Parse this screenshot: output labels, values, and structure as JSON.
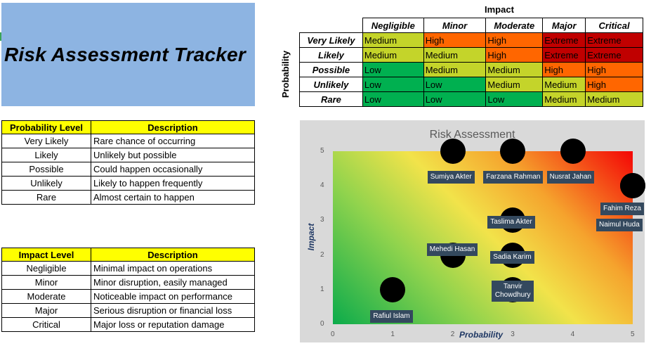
{
  "title": "Risk Assessment Tracker",
  "probability_table": {
    "headers": [
      "Probability Level",
      "Description"
    ],
    "rows": [
      [
        "Very Likely",
        "Rare chance of occurring"
      ],
      [
        "Likely",
        "Unlikely but possible"
      ],
      [
        "Possible",
        "Could happen occasionally"
      ],
      [
        "Unlikely",
        "Likely to happen frequently"
      ],
      [
        "Rare",
        "Almost certain to happen"
      ]
    ]
  },
  "impact_table": {
    "headers": [
      "Impact Level",
      "Description"
    ],
    "rows": [
      [
        "Negligible",
        "Minimal impact on operations"
      ],
      [
        "Minor",
        "Minor disruption, easily managed"
      ],
      [
        "Moderate",
        "Noticeable impact on performance"
      ],
      [
        "Major",
        "Serious disruption or financial loss"
      ],
      [
        "Critical",
        "Major loss or reputation damage"
      ]
    ]
  },
  "matrix": {
    "impact_label": "Impact",
    "probability_label": "Probability",
    "columns": [
      "Negligible",
      "Minor",
      "Moderate",
      "Major",
      "Critical"
    ],
    "rows": [
      {
        "label": "Very Likely",
        "cells": [
          "Medium",
          "High",
          "High",
          "Extreme",
          "Extreme"
        ]
      },
      {
        "label": "Likely",
        "cells": [
          "Medium",
          "Medium",
          "High",
          "Extreme",
          "Extreme"
        ]
      },
      {
        "label": "Possible",
        "cells": [
          "Low",
          "Medium",
          "Medium",
          "High",
          "High"
        ]
      },
      {
        "label": "Unlikely",
        "cells": [
          "Low",
          "Low",
          "Medium",
          "Medium",
          "High"
        ]
      },
      {
        "label": "Rare",
        "cells": [
          "Low",
          "Low",
          "Low",
          "Medium",
          "Medium"
        ]
      }
    ],
    "colors": {
      "Low": "#00b050",
      "Medium": "#c4d42a",
      "High": "#ff6600",
      "Extreme": "#c00000"
    }
  },
  "chart_data": {
    "type": "scatter",
    "title": "Risk Assessment",
    "xlabel": "Probability",
    "ylabel": "Impact",
    "xlim": [
      0,
      5
    ],
    "ylim": [
      0,
      5
    ],
    "xticks": [
      0,
      1,
      2,
      3,
      4,
      5
    ],
    "yticks": [
      0,
      1,
      2,
      3,
      4,
      5
    ],
    "points": [
      {
        "name": "Rafiul Islam",
        "x": 1,
        "y": 1
      },
      {
        "name": "Mehedi Hasan",
        "x": 2,
        "y": 2
      },
      {
        "name": "Tanvir Chowdhury",
        "x": 3,
        "y": 1
      },
      {
        "name": "Sadia Karim",
        "x": 3,
        "y": 2
      },
      {
        "name": "Taslima Akter",
        "x": 3,
        "y": 3
      },
      {
        "name": "Sumiya Akter",
        "x": 2,
        "y": 5
      },
      {
        "name": "Farzana Rahman",
        "x": 3,
        "y": 5
      },
      {
        "name": "Nusrat Jahan",
        "x": 4,
        "y": 5
      },
      {
        "name": "Fahim Reza",
        "x": 5,
        "y": 4
      },
      {
        "name": "Naimul Huda",
        "x": 5,
        "y": 4
      }
    ]
  }
}
